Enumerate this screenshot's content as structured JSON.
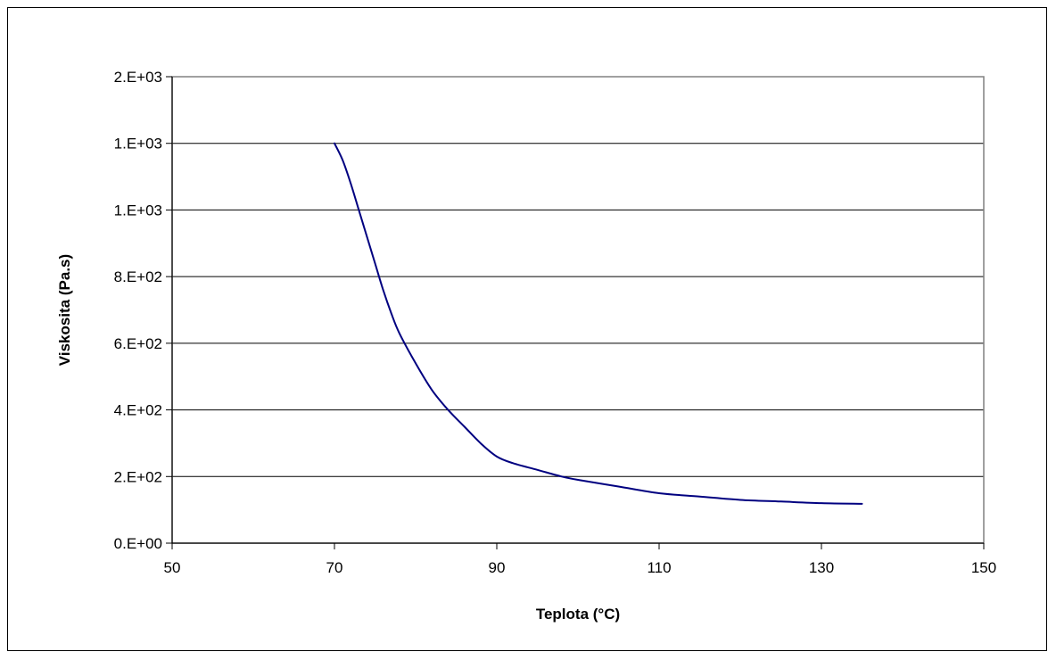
{
  "chart_data": {
    "type": "line",
    "title": "",
    "xlabel": "Teplota (°C)",
    "ylabel": "Viskosita (Pa.s)",
    "xlim": [
      50,
      150
    ],
    "ylim": [
      0,
      1400
    ],
    "x_ticks": [
      50,
      70,
      90,
      110,
      130,
      150
    ],
    "x_tick_labels": [
      "50",
      "70",
      "90",
      "110",
      "130",
      "150"
    ],
    "y_ticks": [
      0,
      200,
      400,
      600,
      800,
      1000,
      1200,
      1400
    ],
    "y_tick_labels": [
      "0.E+00",
      "2.E+02",
      "4.E+02",
      "6.E+02",
      "8.E+02",
      "1.E+03",
      "1.E+03",
      "2.E+03"
    ],
    "grid": "horizontal",
    "legend": "none",
    "series": [
      {
        "color": "#000080",
        "x": [
          70,
          71,
          72,
          73,
          74,
          75,
          76,
          77,
          78,
          80,
          82,
          84,
          86,
          88,
          90,
          92,
          95,
          98,
          100,
          105,
          110,
          115,
          120,
          125,
          130,
          135
        ],
        "y": [
          1200,
          1150,
          1080,
          1000,
          920,
          840,
          760,
          690,
          630,
          540,
          460,
          400,
          350,
          300,
          260,
          240,
          220,
          200,
          190,
          170,
          150,
          140,
          130,
          125,
          120,
          118
        ]
      }
    ]
  }
}
